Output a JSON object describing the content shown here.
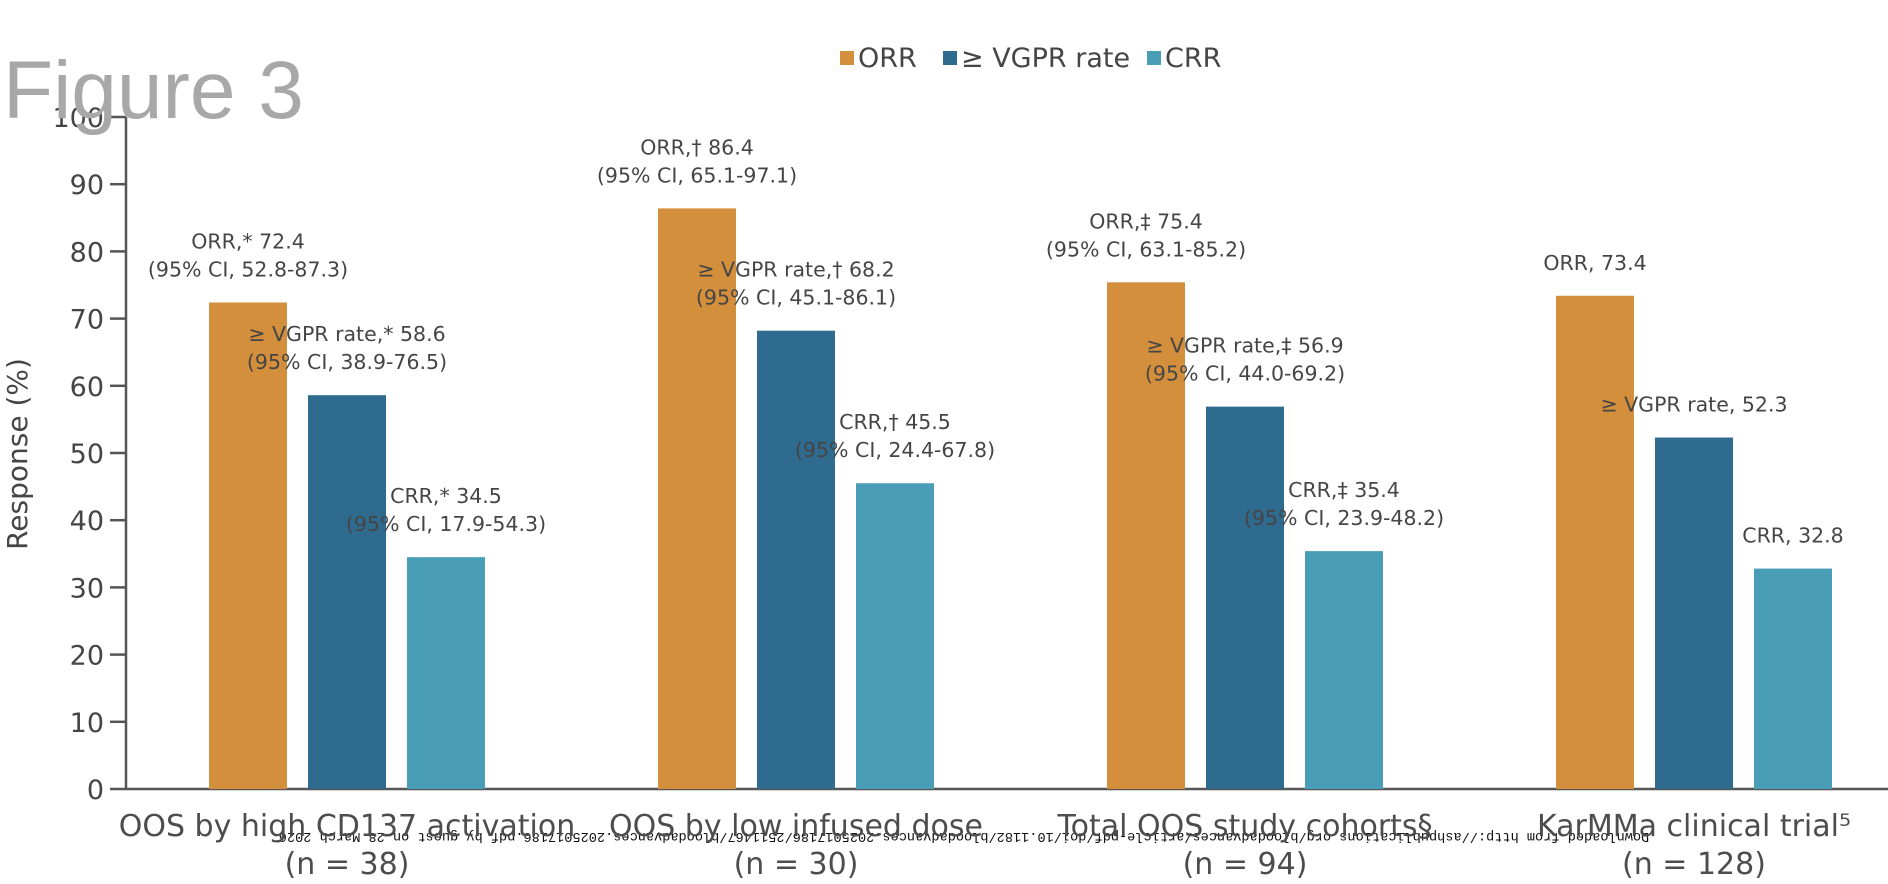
{
  "figure_title": "Figure 3",
  "watermark": "Downloaded from http://ashpublications.org/bloodadvances/article-pdf/doi/10.1182/bloodadvances.2025017186/2511467/bloodadvances.2025017186.pdf by guest on 28 March 2026",
  "chart_data": {
    "type": "bar",
    "title": "",
    "xlabel": "",
    "ylabel": "Response (%)",
    "ylim": [
      0,
      100
    ],
    "yticks": [
      0,
      10,
      20,
      30,
      40,
      50,
      60,
      70,
      80,
      90,
      100
    ],
    "grid": false,
    "legend_position": "top-center",
    "categories": [
      {
        "name": "OOS by high CD137 activation",
        "n": "(n = 38)"
      },
      {
        "name": "OOS by low infused dose",
        "n": "(n = 30)"
      },
      {
        "name": "Total OOS study cohorts§",
        "n": "(n = 94)"
      },
      {
        "name": "KarMMa clinical trial⁵",
        "n": "(n = 128)"
      }
    ],
    "series": [
      {
        "name": "ORR",
        "color": "#D38F3B",
        "values": [
          72.4,
          86.4,
          75.4,
          73.4
        ],
        "labels": [
          [
            "ORR,* 72.4",
            "(95% CI, 52.8-87.3)"
          ],
          [
            "ORR,† 86.4",
            "(95% CI, 65.1-97.1)"
          ],
          [
            "ORR,‡ 75.4",
            "(95% CI, 63.1-85.2)"
          ],
          [
            "ORR, 73.4"
          ]
        ]
      },
      {
        "name": "≥ VGPR rate",
        "color": "#2F6A8F",
        "values": [
          58.6,
          68.2,
          56.9,
          52.3
        ],
        "labels": [
          [
            "≥ VGPR rate,* 58.6",
            "(95% CI, 38.9-76.5)"
          ],
          [
            "≥ VGPR rate,† 68.2",
            "(95% CI, 45.1-86.1)"
          ],
          [
            "≥ VGPR rate,‡ 56.9",
            "(95% CI, 44.0-69.2)"
          ],
          [
            "≥ VGPR rate, 52.3"
          ]
        ]
      },
      {
        "name": "CRR",
        "color": "#4A9DB6",
        "values": [
          34.5,
          45.5,
          35.4,
          32.8
        ],
        "labels": [
          [
            "CRR,* 34.5",
            "(95% CI, 17.9-54.3)"
          ],
          [
            "CRR,† 45.5",
            "(95% CI, 24.4-67.8)"
          ],
          [
            "CRR,‡ 35.4",
            "(95% CI, 23.9-48.2)"
          ],
          [
            "CRR, 32.8"
          ]
        ]
      }
    ]
  }
}
